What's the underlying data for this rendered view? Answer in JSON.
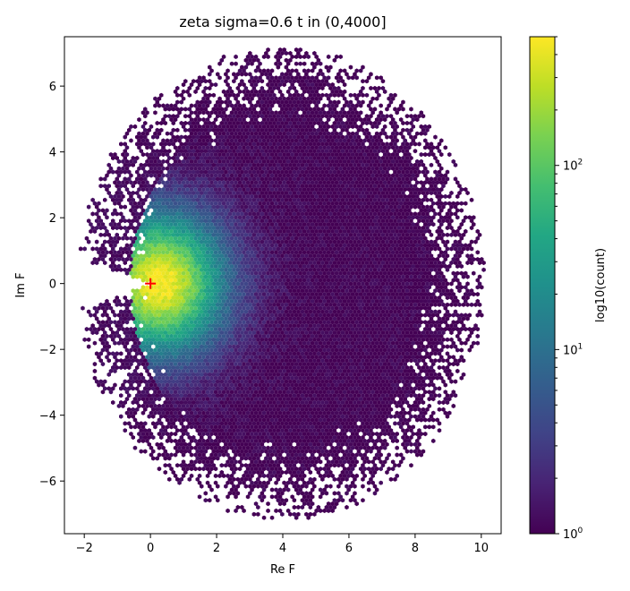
{
  "chart_data": {
    "type": "heatmap",
    "plot_kind": "hexbin density of complex values",
    "title": "zeta  sigma=0.6  t in (0,4000]",
    "xlabel": "Re F",
    "ylabel": "Im F",
    "xlim": [
      -2.6,
      10.6
    ],
    "ylim": [
      -7.6,
      7.5
    ],
    "xticks": [
      -2,
      0,
      2,
      4,
      6,
      8,
      10
    ],
    "xtick_labels": [
      "−2",
      "0",
      "2",
      "4",
      "6",
      "8",
      "10"
    ],
    "yticks": [
      -6,
      -4,
      -2,
      0,
      2,
      4,
      6
    ],
    "ytick_labels": [
      "−6",
      "−4",
      "−2",
      "0",
      "2",
      "4",
      "6"
    ],
    "grid": false,
    "colormap": "viridis",
    "colorbar": {
      "label": "log10(count)",
      "scale": "log",
      "range": [
        1,
        500
      ],
      "major_ticks": [
        1,
        10,
        100
      ],
      "major_tick_labels": [
        {
          "base": "10",
          "exp": "0"
        },
        {
          "base": "10",
          "exp": "1"
        },
        {
          "base": "10",
          "exp": "2"
        }
      ]
    },
    "density_model": {
      "peak_location": [
        0.3,
        0.0
      ],
      "peak_count": 500,
      "outer_extent": {
        "re_min": -2.0,
        "re_max": 10.0,
        "im_min": -7.2,
        "im_max": 7.1
      }
    },
    "marker": {
      "symbol": "+",
      "location": [
        0,
        0
      ],
      "color": "#ff0000"
    }
  },
  "colors": {
    "viridis_low": "#440154",
    "viridis_mid": "#21918c",
    "viridis_high": "#fde725",
    "marker": "#ff0000"
  }
}
